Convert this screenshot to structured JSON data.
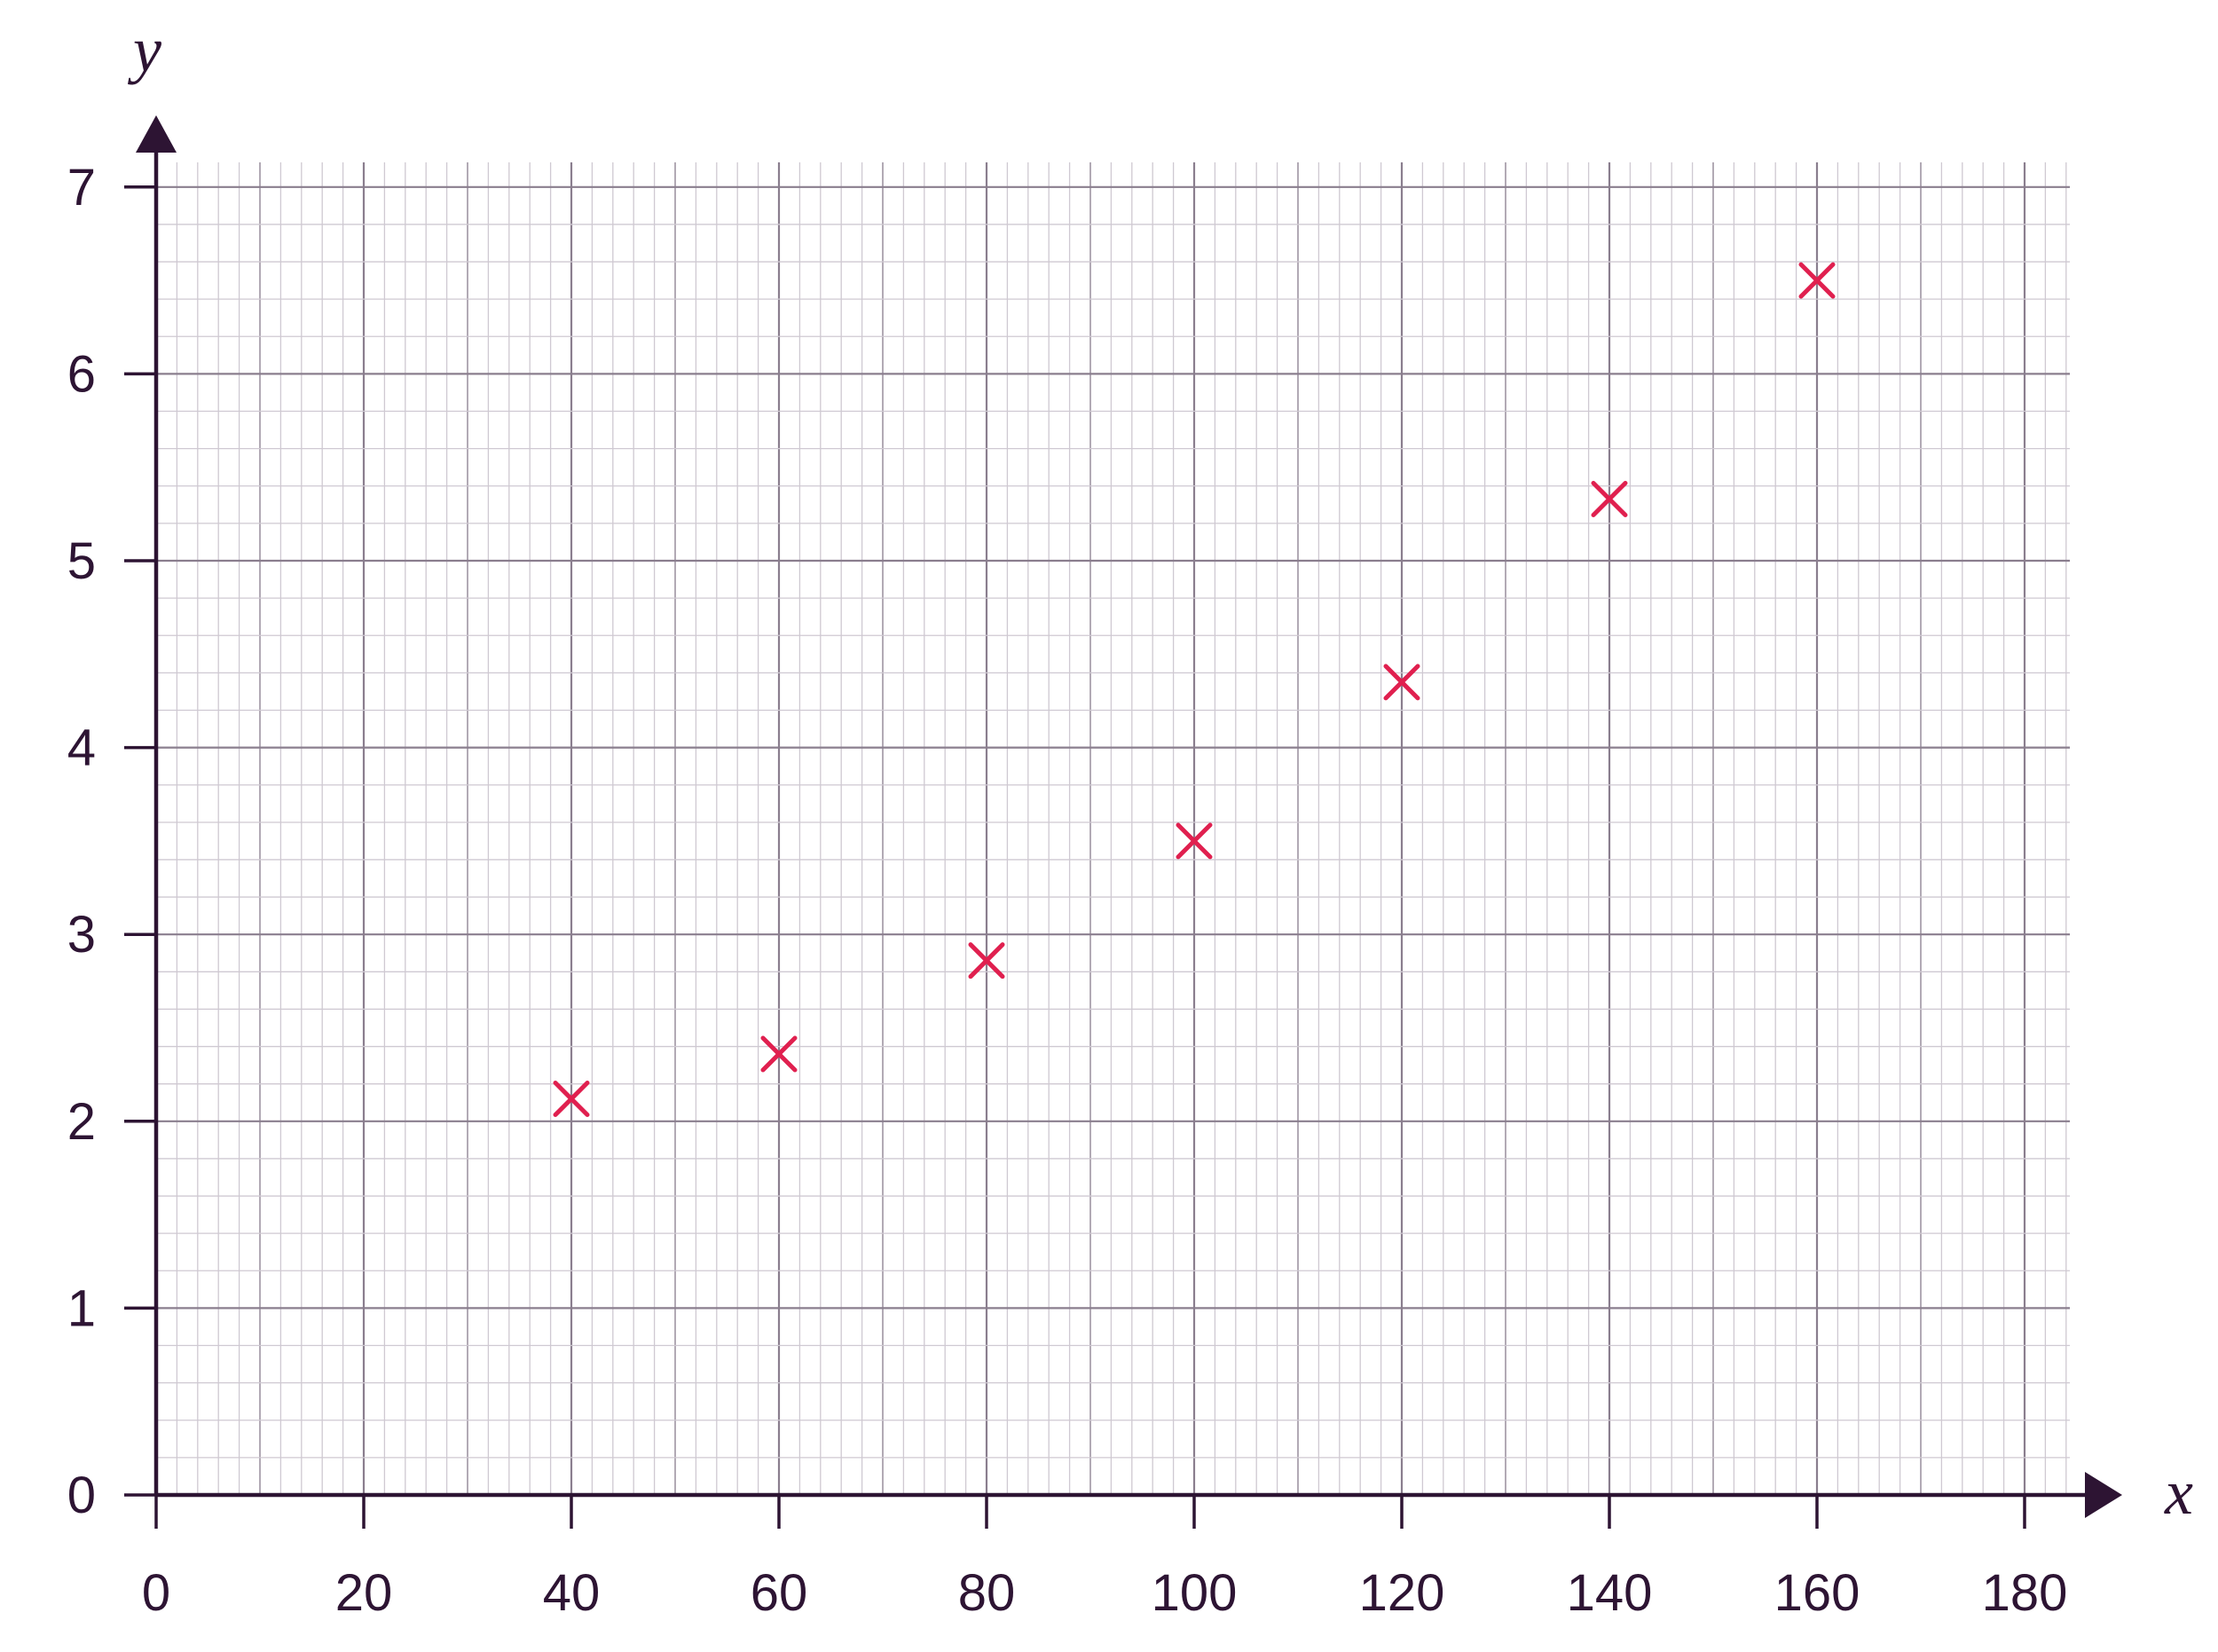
{
  "chart_data": {
    "type": "scatter",
    "xlabel": "x",
    "ylabel": "y",
    "xlim": [
      0,
      185
    ],
    "ylim": [
      0,
      7.2
    ],
    "x_ticks": [
      0,
      20,
      40,
      60,
      80,
      100,
      120,
      140,
      160,
      180
    ],
    "y_ticks": [
      0,
      1,
      2,
      3,
      4,
      5,
      6,
      7
    ],
    "x_minor_step": 2,
    "y_minor_step": 0.2,
    "x_mid_grid_step": 10,
    "grid": true,
    "marker": "x",
    "colors": {
      "marker": "#e0204f",
      "axis": "#2d1433",
      "major_grid": "#8a7e8e",
      "mid_grid": "#a9a0ad",
      "minor_grid": "#cfc9d2",
      "text": "#2d1433"
    },
    "points": [
      {
        "x": 40,
        "y": 2.12
      },
      {
        "x": 60,
        "y": 2.36
      },
      {
        "x": 80,
        "y": 2.86
      },
      {
        "x": 100,
        "y": 3.5
      },
      {
        "x": 120,
        "y": 4.35
      },
      {
        "x": 140,
        "y": 5.33
      },
      {
        "x": 160,
        "y": 6.5
      }
    ]
  }
}
